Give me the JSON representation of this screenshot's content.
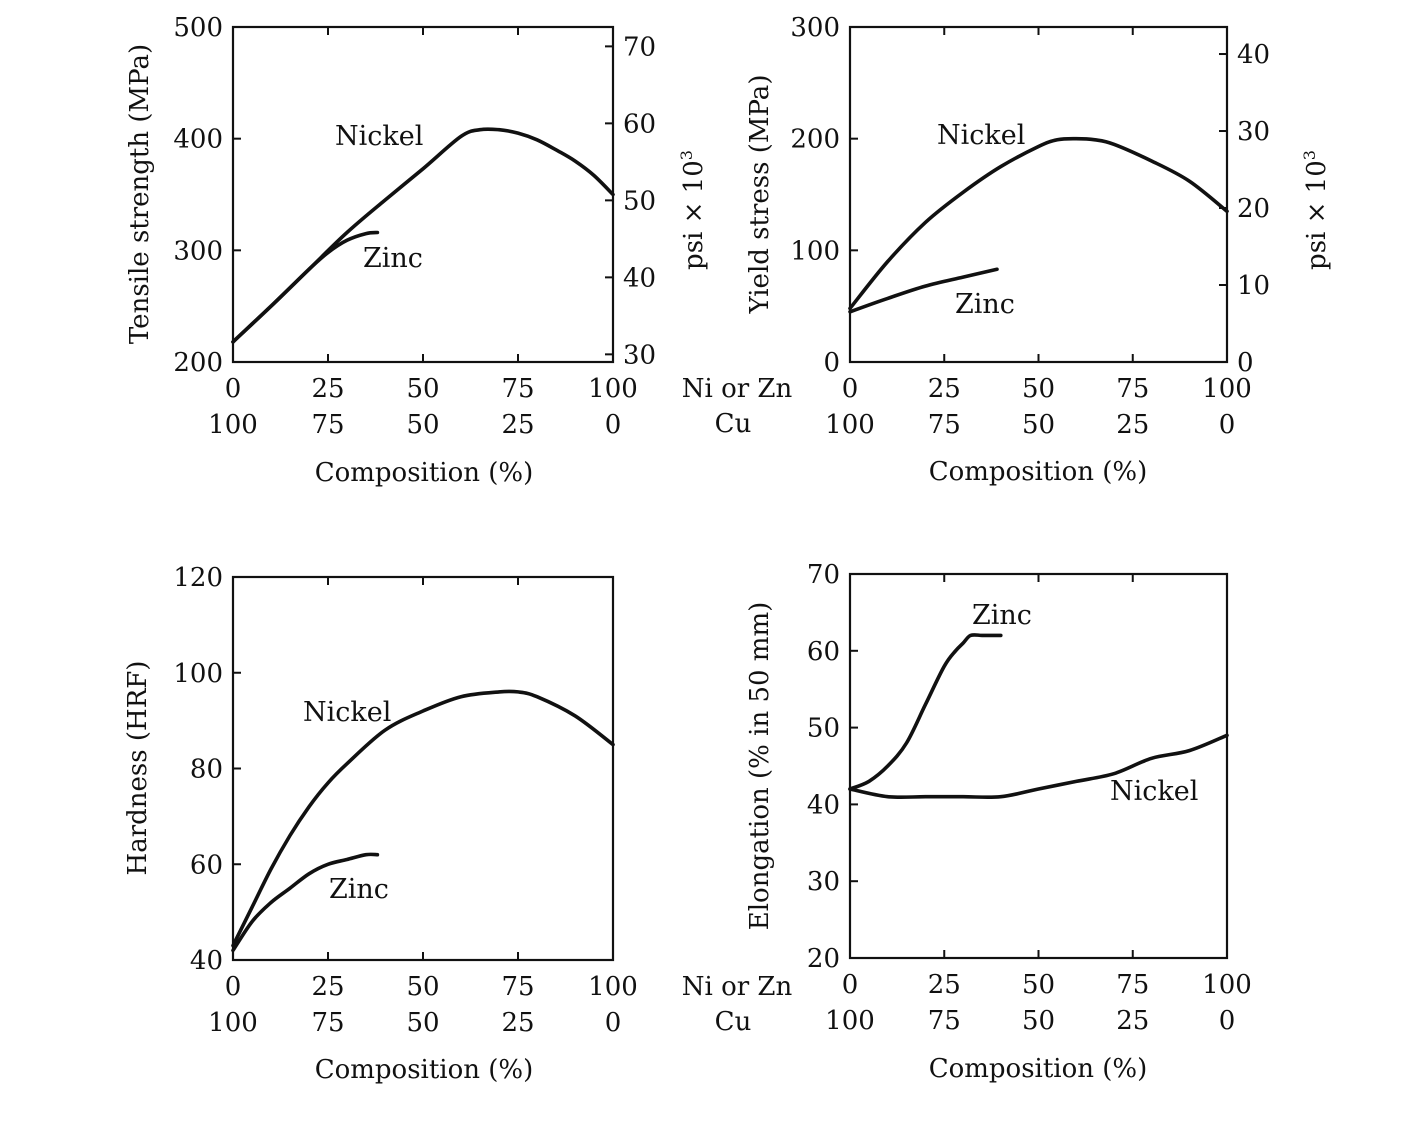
{
  "figure": {
    "composition_row_top": "Ni or Zn",
    "composition_row_bottom": "Cu"
  },
  "chart_data": [
    {
      "type": "line",
      "ylabel": "Tensile strength (MPa)",
      "xlabel": "Composition (%)",
      "ylabel_right": "psi × 10",
      "ylabel_right_superscript": "3",
      "xlim": [
        0,
        100
      ],
      "ylim": [
        200,
        500
      ],
      "yticks": [
        200,
        300,
        400,
        500
      ],
      "xticks": [
        0,
        25,
        50,
        75,
        100
      ],
      "xticks_cu": [
        100,
        75,
        50,
        25,
        0
      ],
      "right_ticks": [
        30,
        40,
        50,
        60,
        70
      ],
      "right_scale": 6.895,
      "series": [
        {
          "name": "Nickel",
          "x": [
            0,
            10,
            20,
            30,
            40,
            50,
            60,
            65,
            70,
            75,
            80,
            85,
            90,
            95,
            100
          ],
          "y": [
            218,
            250,
            283,
            316,
            345,
            373,
            402,
            408,
            408,
            405,
            399,
            390,
            380,
            367,
            350
          ]
        },
        {
          "name": "Zinc",
          "x": [
            0,
            10,
            20,
            25,
            30,
            35,
            38
          ],
          "y": [
            218,
            250,
            283,
            298,
            309,
            315,
            316
          ]
        }
      ]
    },
    {
      "type": "line",
      "ylabel": "Yield stress (MPa)",
      "xlabel": "Composition (%)",
      "ylabel_right": "psi × 10",
      "ylabel_right_superscript": "3",
      "xlim": [
        0,
        100
      ],
      "ylim": [
        0,
        300
      ],
      "yticks": [
        0,
        100,
        200,
        300
      ],
      "xticks": [
        0,
        25,
        50,
        75,
        100
      ],
      "xticks_cu": [
        100,
        75,
        50,
        25,
        0
      ],
      "right_ticks": [
        0,
        10,
        20,
        30,
        40
      ],
      "right_scale": 6.895,
      "series": [
        {
          "name": "Nickel",
          "x": [
            0,
            10,
            20,
            30,
            40,
            50,
            55,
            60,
            65,
            70,
            80,
            90,
            100
          ],
          "y": [
            48,
            90,
            125,
            152,
            175,
            193,
            199,
            200,
            199,
            195,
            180,
            162,
            135
          ]
        },
        {
          "name": "Zinc",
          "x": [
            0,
            10,
            20,
            30,
            39
          ],
          "y": [
            45,
            57,
            68,
            76,
            83
          ]
        }
      ]
    },
    {
      "type": "line",
      "ylabel": "Hardness (HRF)",
      "xlabel": "Composition (%)",
      "xlim": [
        0,
        100
      ],
      "ylim": [
        40,
        120
      ],
      "yticks": [
        40,
        60,
        80,
        100,
        120
      ],
      "xticks": [
        0,
        25,
        50,
        75,
        100
      ],
      "xticks_cu": [
        100,
        75,
        50,
        25,
        0
      ],
      "series": [
        {
          "name": "Nickel",
          "x": [
            0,
            5,
            10,
            15,
            20,
            25,
            30,
            40,
            50,
            60,
            70,
            75,
            80,
            90,
            100
          ],
          "y": [
            43,
            51,
            59,
            66,
            72,
            77,
            81,
            88,
            92,
            95,
            96,
            96,
            95,
            91,
            85
          ]
        },
        {
          "name": "Zinc",
          "x": [
            0,
            5,
            10,
            15,
            20,
            25,
            30,
            35,
            38
          ],
          "y": [
            42,
            48,
            52,
            55,
            58,
            60,
            61,
            62,
            62
          ]
        }
      ]
    },
    {
      "type": "line",
      "ylabel": "Elongation (% in 50 mm)",
      "xlabel": "Composition (%)",
      "xlim": [
        0,
        100
      ],
      "ylim": [
        20,
        70
      ],
      "yticks": [
        20,
        30,
        40,
        50,
        60,
        70
      ],
      "xticks": [
        0,
        25,
        50,
        75,
        100
      ],
      "xticks_cu": [
        100,
        75,
        50,
        25,
        0
      ],
      "series": [
        {
          "name": "Zinc",
          "x": [
            0,
            5,
            10,
            15,
            20,
            25,
            28,
            30,
            32,
            35,
            38,
            40
          ],
          "y": [
            42,
            43,
            45,
            48,
            53,
            58,
            60,
            61,
            62,
            62,
            62,
            62
          ]
        },
        {
          "name": "Nickel",
          "x": [
            0,
            10,
            20,
            30,
            40,
            50,
            60,
            70,
            80,
            90,
            100
          ],
          "y": [
            42,
            41,
            41,
            41,
            41,
            42,
            43,
            44,
            46,
            47,
            49
          ]
        }
      ]
    }
  ]
}
